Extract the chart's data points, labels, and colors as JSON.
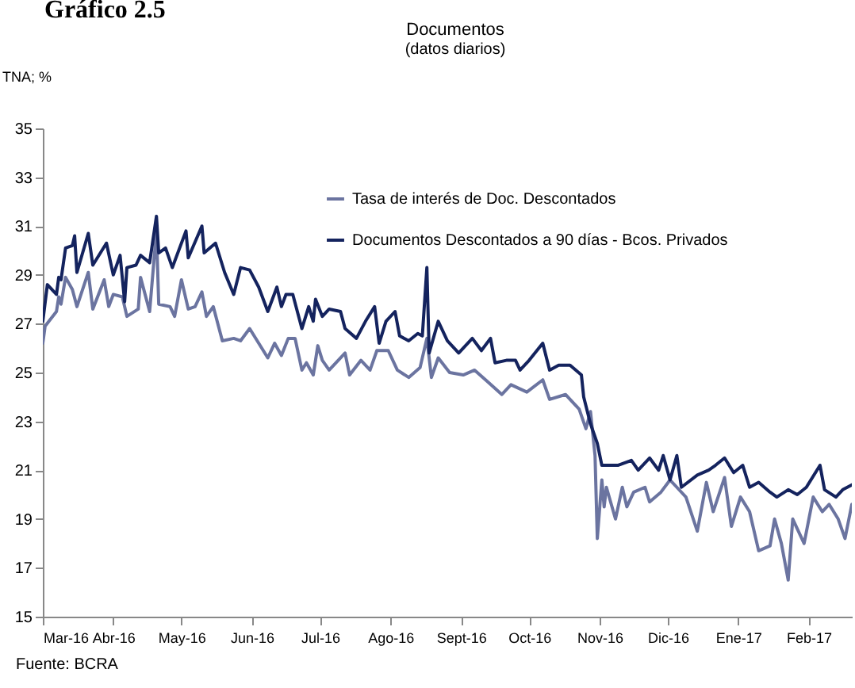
{
  "chart_data": {
    "type": "line",
    "title": "Documentos",
    "subtitle": "(datos diarios)",
    "ylabel": "TNA; %",
    "annotations": [
      "Gráfico 2.5",
      "Fuente: BCRA"
    ],
    "legend": "top",
    "grid": false,
    "xlim": [
      "2016-03-01",
      "2017-02-20"
    ],
    "xticks": [
      {
        "value": "2016-03-01",
        "label": "Mar-16"
      },
      {
        "value": "2016-04-01",
        "label": "Abr-16"
      },
      {
        "value": "2016-05-01",
        "label": "May-16"
      },
      {
        "value": "2016-06-01",
        "label": "Jun-16"
      },
      {
        "value": "2016-07-01",
        "label": "Jul-16"
      },
      {
        "value": "2016-08-01",
        "label": "Ago-16"
      },
      {
        "value": "2016-09-01",
        "label": "Sept-16"
      },
      {
        "value": "2016-10-01",
        "label": "Oct-16"
      },
      {
        "value": "2016-11-01",
        "label": "Nov-16"
      },
      {
        "value": "2016-12-01",
        "label": "Dic-16"
      },
      {
        "value": "2017-01-01",
        "label": "Ene-17"
      },
      {
        "value": "2017-02-01",
        "label": "Feb-17"
      }
    ],
    "ylim": [
      15,
      35
    ],
    "yticks": [
      15,
      17,
      19,
      21,
      23,
      25,
      27,
      29,
      31,
      33,
      35
    ],
    "series": [
      {
        "name": "Tasa de interés de Doc. Descontados",
        "color": "#6b74a0",
        "x": [
          "2016-03-01",
          "2016-03-02",
          "2016-03-07",
          "2016-03-08",
          "2016-03-09",
          "2016-03-11",
          "2016-03-14",
          "2016-03-16",
          "2016-03-21",
          "2016-03-23",
          "2016-03-28",
          "2016-03-30",
          "2016-04-01",
          "2016-04-05",
          "2016-04-07",
          "2016-04-12",
          "2016-04-13",
          "2016-04-17",
          "2016-04-20",
          "2016-04-21",
          "2016-04-26",
          "2016-04-28",
          "2016-05-01",
          "2016-05-04",
          "2016-05-07",
          "2016-05-10",
          "2016-05-12",
          "2016-05-15",
          "2016-05-19",
          "2016-05-24",
          "2016-05-27",
          "2016-05-31",
          "2016-06-04",
          "2016-06-08",
          "2016-06-11",
          "2016-06-14",
          "2016-06-17",
          "2016-06-20",
          "2016-06-23",
          "2016-06-25",
          "2016-06-28",
          "2016-06-30",
          "2016-07-02",
          "2016-07-05",
          "2016-07-12",
          "2016-07-14",
          "2016-07-19",
          "2016-07-23",
          "2016-07-26",
          "2016-07-31",
          "2016-08-04",
          "2016-08-09",
          "2016-08-14",
          "2016-08-17",
          "2016-08-19",
          "2016-08-22",
          "2016-08-27",
          "2016-09-02",
          "2016-09-07",
          "2016-09-13",
          "2016-09-19",
          "2016-09-23",
          "2016-09-30",
          "2016-10-07",
          "2016-10-10",
          "2016-10-17",
          "2016-10-23",
          "2016-10-26",
          "2016-10-28",
          "2016-10-30",
          "2016-10-31",
          "2016-11-02",
          "2016-11-03",
          "2016-11-04",
          "2016-11-08",
          "2016-11-11",
          "2016-11-13",
          "2016-11-16",
          "2016-11-21",
          "2016-11-23",
          "2016-11-28",
          "2016-12-02",
          "2016-12-05",
          "2016-12-09",
          "2016-12-14",
          "2016-12-18",
          "2016-12-21",
          "2016-12-26",
          "2016-12-29",
          "2017-01-02",
          "2017-01-06",
          "2017-01-10",
          "2017-01-15",
          "2017-01-17",
          "2017-01-20",
          "2017-01-23",
          "2017-01-25",
          "2017-01-30",
          "2017-02-03",
          "2017-02-07",
          "2017-02-10",
          "2017-02-14",
          "2017-02-17",
          "2017-02-20"
        ],
        "values": [
          26.2,
          26.9,
          27.5,
          28.1,
          27.8,
          28.9,
          28.4,
          27.7,
          29.1,
          27.6,
          28.8,
          27.7,
          28.2,
          28.1,
          27.3,
          27.6,
          28.9,
          27.5,
          30.8,
          27.8,
          27.7,
          27.3,
          28.8,
          27.6,
          27.7,
          28.3,
          27.3,
          27.7,
          26.3,
          26.4,
          26.3,
          26.8,
          26.2,
          25.6,
          26.2,
          25.7,
          26.4,
          26.4,
          25.1,
          25.4,
          24.9,
          26.1,
          25.5,
          25.1,
          25.8,
          24.9,
          25.5,
          25.1,
          25.9,
          25.9,
          25.1,
          24.8,
          25.2,
          26.4,
          24.8,
          25.6,
          25.0,
          24.9,
          25.1,
          24.6,
          24.1,
          24.5,
          24.2,
          24.7,
          23.9,
          24.1,
          23.5,
          22.7,
          23.4,
          21.6,
          18.2,
          20.6,
          19.5,
          20.3,
          19.0,
          20.3,
          19.5,
          20.1,
          20.3,
          19.7,
          20.1,
          20.6,
          20.3,
          19.9,
          18.5,
          20.5,
          19.3,
          20.7,
          18.7,
          19.9,
          19.3,
          17.7,
          17.9,
          19.0,
          18.0,
          16.5,
          19.0,
          18.0,
          19.9,
          19.3,
          19.6,
          19.0,
          18.2,
          19.6
        ]
      },
      {
        "name": "Documentos Descontados a 90 días - Bcos. Privados",
        "color": "#14235e",
        "x": [
          "2016-03-01",
          "2016-03-03",
          "2016-03-07",
          "2016-03-08",
          "2016-03-09",
          "2016-03-11",
          "2016-03-14",
          "2016-03-15",
          "2016-03-16",
          "2016-03-21",
          "2016-03-23",
          "2016-03-29",
          "2016-04-01",
          "2016-04-04",
          "2016-04-06",
          "2016-04-07",
          "2016-04-11",
          "2016-04-13",
          "2016-04-17",
          "2016-04-20",
          "2016-04-21",
          "2016-04-24",
          "2016-04-27",
          "2016-05-03",
          "2016-05-04",
          "2016-05-10",
          "2016-05-11",
          "2016-05-16",
          "2016-05-20",
          "2016-05-24",
          "2016-05-27",
          "2016-05-31",
          "2016-06-04",
          "2016-06-08",
          "2016-06-12",
          "2016-06-14",
          "2016-06-16",
          "2016-06-19",
          "2016-06-23",
          "2016-06-26",
          "2016-06-28",
          "2016-06-29",
          "2016-07-02",
          "2016-07-05",
          "2016-07-10",
          "2016-07-12",
          "2016-07-17",
          "2016-07-21",
          "2016-07-25",
          "2016-07-27",
          "2016-07-30",
          "2016-08-03",
          "2016-08-05",
          "2016-08-09",
          "2016-08-13",
          "2016-08-15",
          "2016-08-17",
          "2016-08-18",
          "2016-08-22",
          "2016-08-26",
          "2016-08-31",
          "2016-09-06",
          "2016-09-10",
          "2016-09-14",
          "2016-09-16",
          "2016-09-21",
          "2016-09-25",
          "2016-09-27",
          "2016-10-01",
          "2016-10-07",
          "2016-10-10",
          "2016-10-14",
          "2016-10-19",
          "2016-10-24",
          "2016-10-25",
          "2016-10-28",
          "2016-10-31",
          "2016-11-02",
          "2016-11-04",
          "2016-11-09",
          "2016-11-15",
          "2016-11-18",
          "2016-11-23",
          "2016-11-27",
          "2016-11-29",
          "2016-12-02",
          "2016-12-05",
          "2016-12-07",
          "2016-12-14",
          "2016-12-19",
          "2016-12-22",
          "2016-12-26",
          "2016-12-30",
          "2017-01-03",
          "2017-01-06",
          "2017-01-10",
          "2017-01-15",
          "2017-01-18",
          "2017-01-23",
          "2017-01-27",
          "2017-01-31",
          "2017-02-06",
          "2017-02-08",
          "2017-02-13",
          "2017-02-16",
          "2017-02-20"
        ],
        "values": [
          27.1,
          28.6,
          28.2,
          28.9,
          28.8,
          30.1,
          30.2,
          30.6,
          29.1,
          30.7,
          29.4,
          30.3,
          29.0,
          29.8,
          27.9,
          29.3,
          29.4,
          29.8,
          29.5,
          31.4,
          29.9,
          30.1,
          29.3,
          30.8,
          29.7,
          31.0,
          29.9,
          30.3,
          29.1,
          28.2,
          29.3,
          29.2,
          28.5,
          27.5,
          28.5,
          27.7,
          28.2,
          28.2,
          26.8,
          27.7,
          27.1,
          28.0,
          27.3,
          27.6,
          27.5,
          26.8,
          26.4,
          27.1,
          27.7,
          26.2,
          27.1,
          27.5,
          26.5,
          26.3,
          26.6,
          26.5,
          29.3,
          25.8,
          27.1,
          26.3,
          25.8,
          26.4,
          25.9,
          26.4,
          25.4,
          25.5,
          25.5,
          25.1,
          25.5,
          26.2,
          25.1,
          25.3,
          25.3,
          24.9,
          24.0,
          22.9,
          22.1,
          21.2,
          21.2,
          21.2,
          21.4,
          21.0,
          21.5,
          21.0,
          21.6,
          20.6,
          21.6,
          20.3,
          20.8,
          21.0,
          21.2,
          21.5,
          20.9,
          21.2,
          20.3,
          20.5,
          20.1,
          19.9,
          20.2,
          20.0,
          20.3,
          21.2,
          20.2,
          19.9,
          20.2,
          20.4
        ]
      }
    ]
  }
}
